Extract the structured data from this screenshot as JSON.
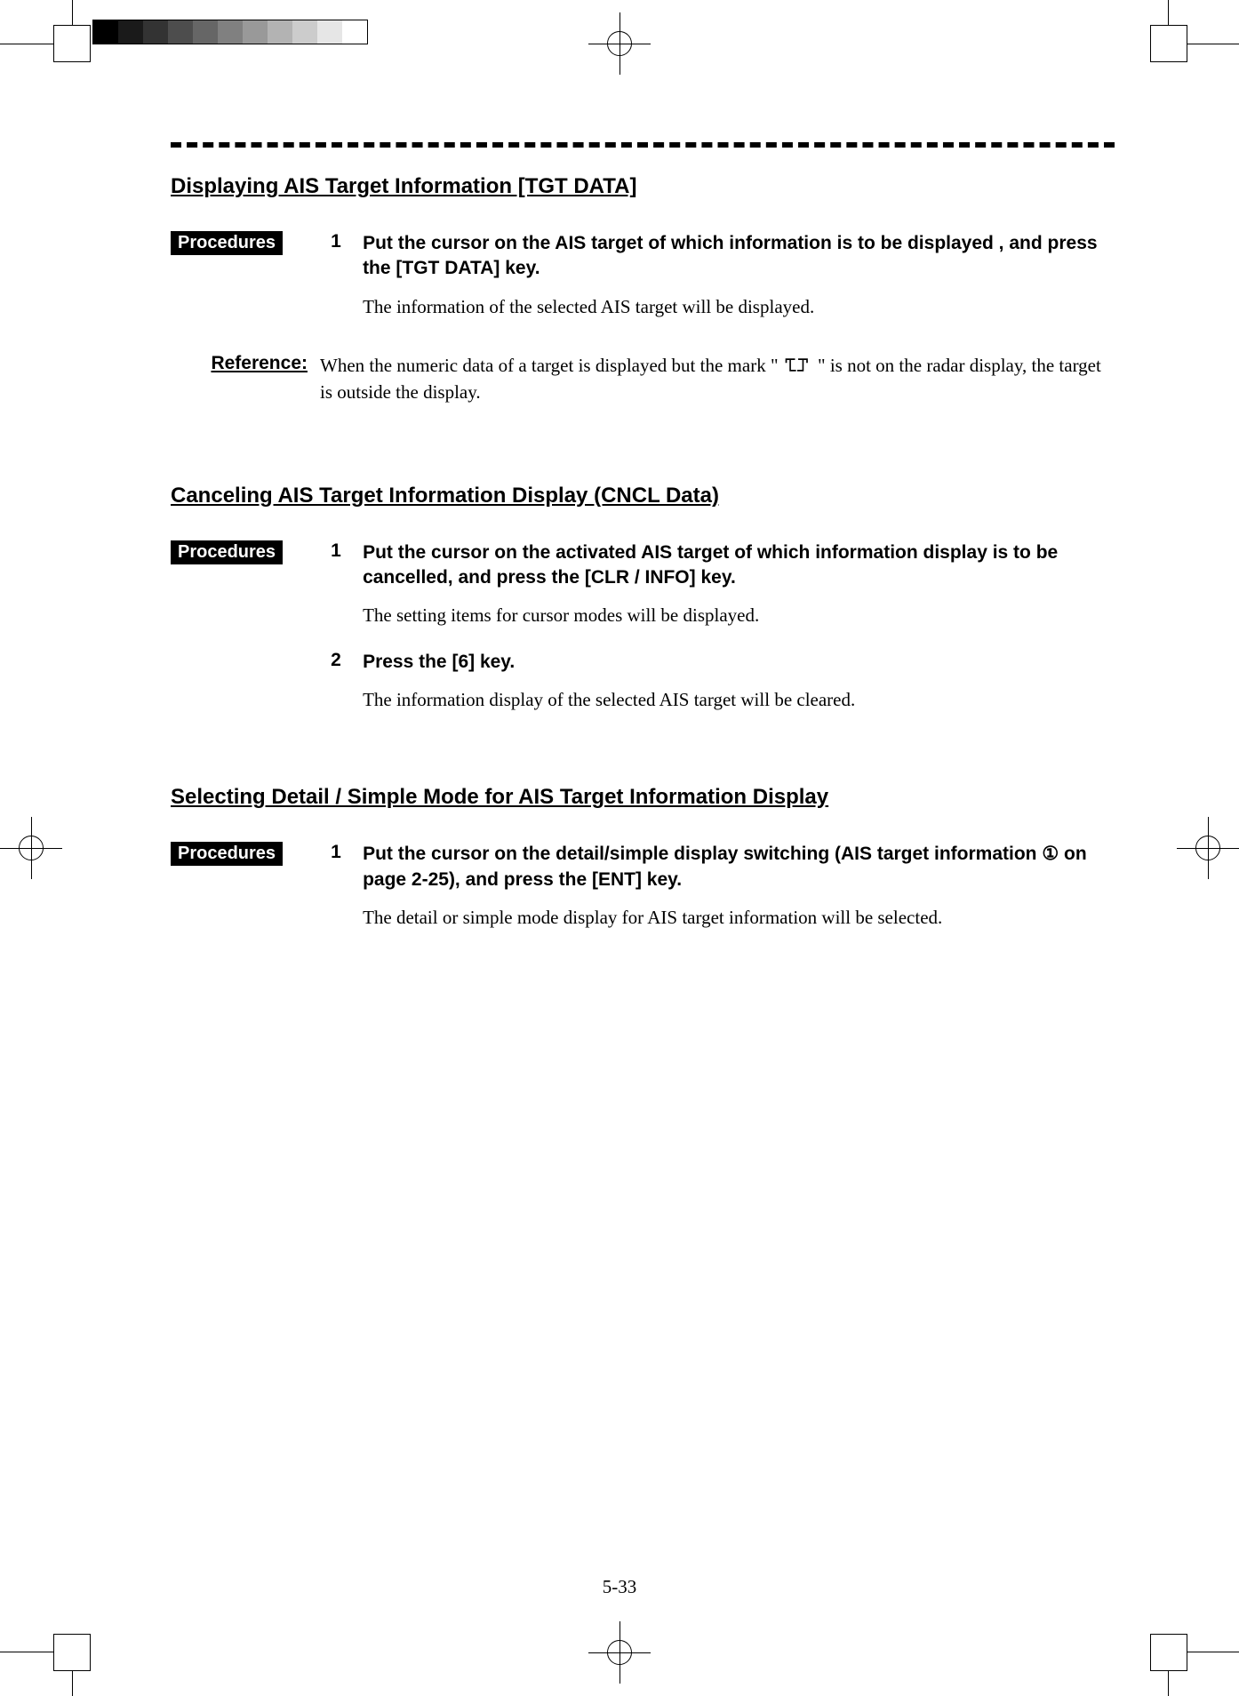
{
  "grayscale_bar": {
    "swatches": [
      "#000000",
      "#1a1a1a",
      "#333333",
      "#4d4d4d",
      "#666666",
      "#808080",
      "#999999",
      "#b3b3b3",
      "#cccccc",
      "#e6e6e6",
      "#ffffff"
    ]
  },
  "page_number": "5-33",
  "labels": {
    "procedures": "Procedures",
    "reference": "Reference:"
  },
  "sections": [
    {
      "title": "Displaying AIS Target Information [TGT DATA]",
      "steps": [
        {
          "num": "1",
          "head": "Put the cursor on the AIS target of which information is to be displayed , and press the [TGT DATA] key.",
          "body": "The information of the selected AIS target will be displayed."
        }
      ],
      "reference_pre": "When the numeric data of a target is displayed but the mark \" ",
      "reference_post": " \" is not on the radar display, the target is outside the display."
    },
    {
      "title": "Canceling AIS Target Information Display (CNCL Data)",
      "steps": [
        {
          "num": "1",
          "head": "Put the cursor on the activated AIS target of which information display is to be cancelled, and press the [CLR / INFO] key.",
          "body": "The setting items for cursor modes will be displayed."
        },
        {
          "num": "2",
          "head": "Press the [6] key.",
          "body": "The information display of the selected AIS target will be cleared."
        }
      ]
    },
    {
      "title": "Selecting Detail / Simple Mode for AIS Target Information Display",
      "steps": [
        {
          "num": "1",
          "head": "Put the cursor on the detail/simple display switching (AIS target information ① on page 2-25), and press the [ENT] key.",
          "body": "The detail or simple mode display for AIS target information will be selected."
        }
      ]
    }
  ]
}
